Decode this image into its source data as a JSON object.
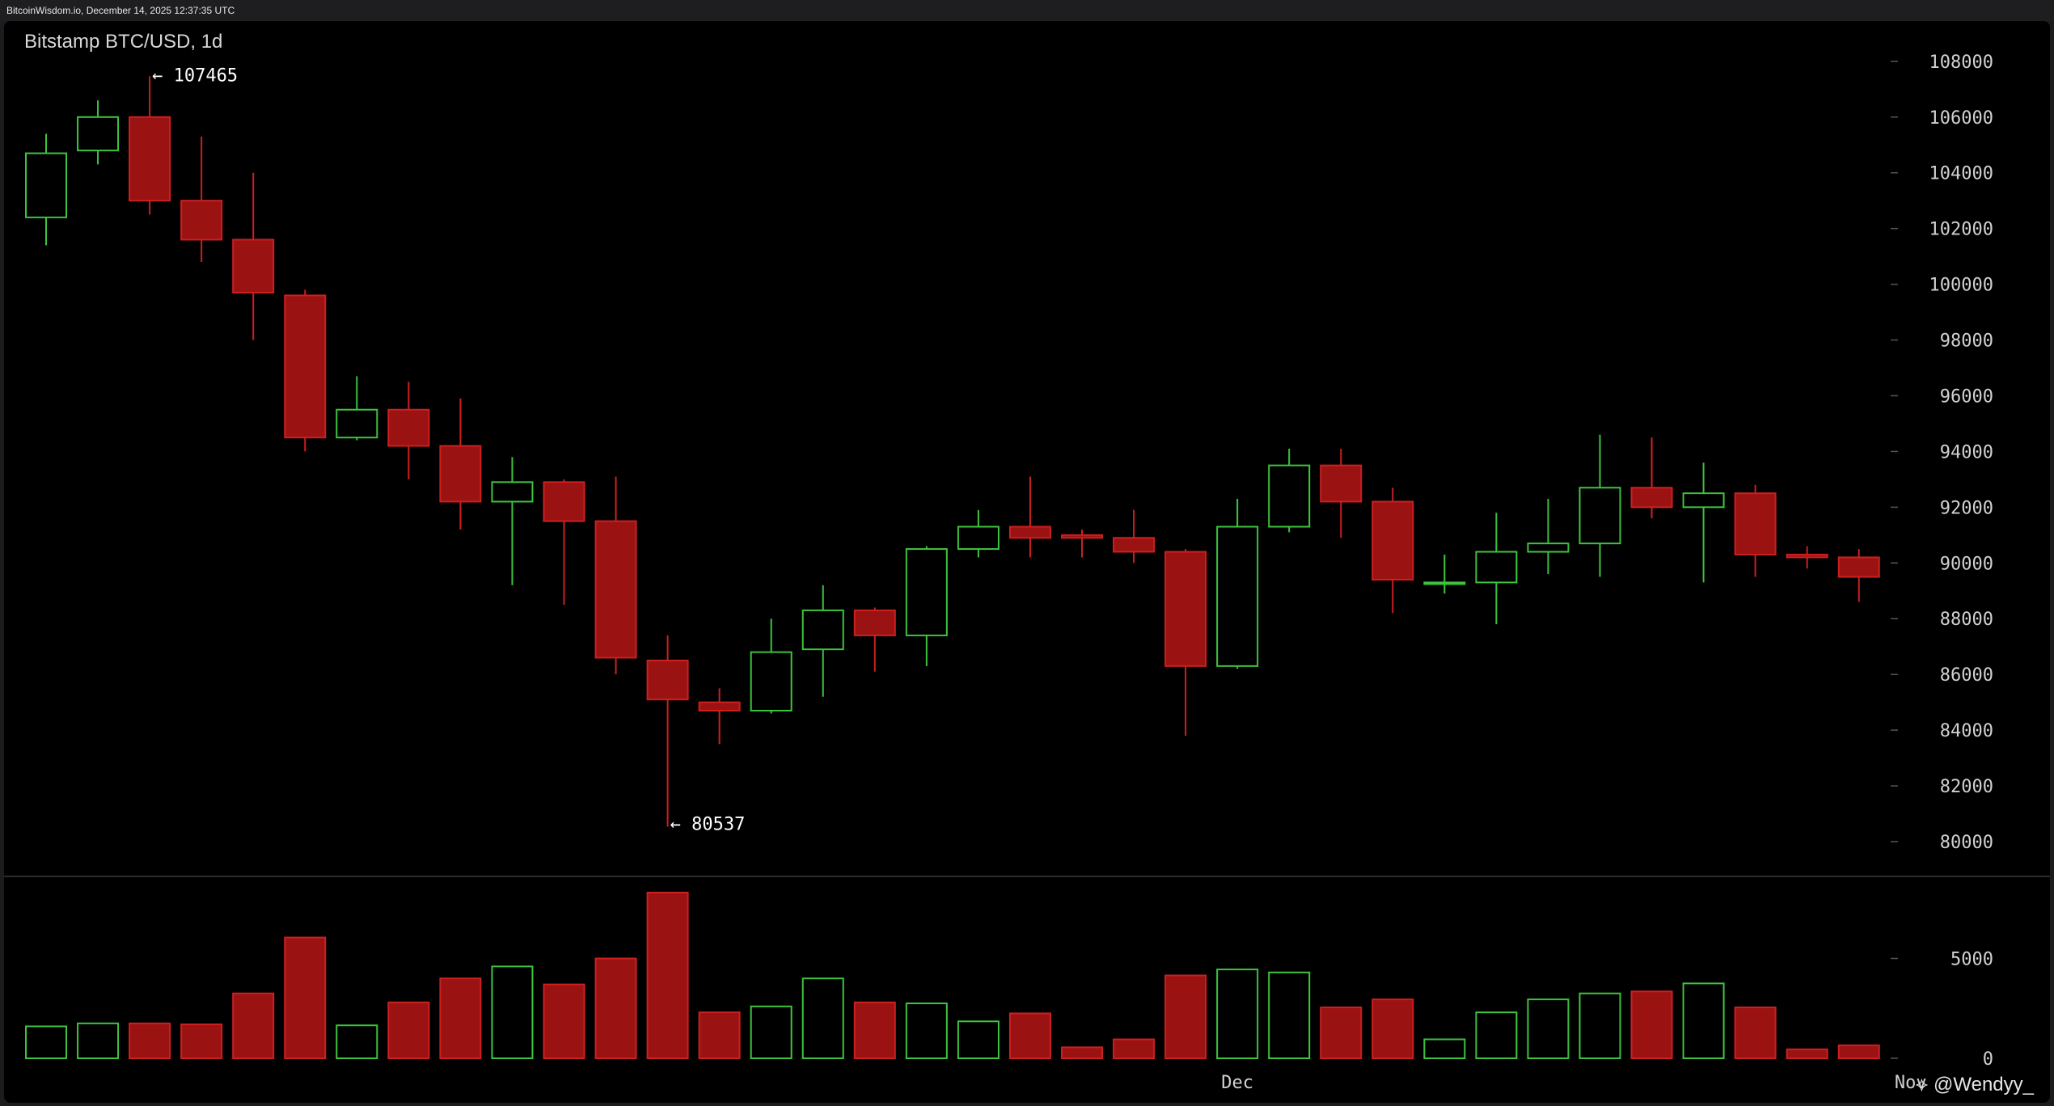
{
  "window": {
    "caption": "BitcoinWisdom.io, December 14, 2025 12:37:35 UTC"
  },
  "chart_title": "Bitstamp BTC/USD, 1d",
  "watermark": {
    "icon": "binance-diamond-icon",
    "text": "@Wendyy_"
  },
  "colors": {
    "up": "#3ec43e",
    "down": "#9b1212",
    "down_edge": "#cc2020",
    "background": "#000000",
    "grid_tick": "#555555"
  },
  "annotations": {
    "high_label": "← 107465",
    "low_label": "← 80537"
  },
  "chart_data": [
    {
      "type": "candlestick",
      "title": "Bitstamp BTC/USD, 1d",
      "y_ticks": [
        80000,
        82000,
        84000,
        86000,
        88000,
        90000,
        92000,
        94000,
        96000,
        98000,
        100000,
        102000,
        104000,
        106000,
        108000
      ],
      "ylim": [
        78000,
        109000
      ],
      "x_tick_labels": [
        "Dec",
        "Nov"
      ],
      "x_tick_at_index": [
        23,
        36
      ],
      "marked_high": 107465,
      "marked_low": 80537,
      "candles": [
        {
          "o": 102400,
          "h": 105400,
          "l": 101400,
          "c": 104700
        },
        {
          "o": 104800,
          "h": 106600,
          "l": 104300,
          "c": 106000
        },
        {
          "o": 106000,
          "h": 107465,
          "l": 102500,
          "c": 103000
        },
        {
          "o": 103000,
          "h": 105300,
          "l": 100800,
          "c": 101600
        },
        {
          "o": 101600,
          "h": 104000,
          "l": 98000,
          "c": 99700
        },
        {
          "o": 99600,
          "h": 99800,
          "l": 94000,
          "c": 94500
        },
        {
          "o": 94500,
          "h": 96700,
          "l": 94400,
          "c": 95500
        },
        {
          "o": 95500,
          "h": 96500,
          "l": 93000,
          "c": 94200
        },
        {
          "o": 94200,
          "h": 95900,
          "l": 91200,
          "c": 92200
        },
        {
          "o": 92200,
          "h": 93800,
          "l": 89200,
          "c": 92900
        },
        {
          "o": 92900,
          "h": 93000,
          "l": 88500,
          "c": 91500
        },
        {
          "o": 91500,
          "h": 93100,
          "l": 86000,
          "c": 86600
        },
        {
          "o": 86500,
          "h": 87400,
          "l": 80537,
          "c": 85100
        },
        {
          "o": 85000,
          "h": 85500,
          "l": 83500,
          "c": 84700
        },
        {
          "o": 84700,
          "h": 88000,
          "l": 84600,
          "c": 86800
        },
        {
          "o": 86900,
          "h": 89200,
          "l": 85200,
          "c": 88300
        },
        {
          "o": 88300,
          "h": 88400,
          "l": 86100,
          "c": 87400
        },
        {
          "o": 87400,
          "h": 90600,
          "l": 86300,
          "c": 90500
        },
        {
          "o": 90500,
          "h": 91900,
          "l": 90200,
          "c": 91300
        },
        {
          "o": 91300,
          "h": 93100,
          "l": 90200,
          "c": 90900
        },
        {
          "o": 91000,
          "h": 91200,
          "l": 90200,
          "c": 90900
        },
        {
          "o": 90900,
          "h": 91900,
          "l": 90000,
          "c": 90400
        },
        {
          "o": 90400,
          "h": 90500,
          "l": 83800,
          "c": 86300
        },
        {
          "o": 86300,
          "h": 92300,
          "l": 86200,
          "c": 91300
        },
        {
          "o": 91300,
          "h": 94100,
          "l": 91100,
          "c": 93500
        },
        {
          "o": 93500,
          "h": 94100,
          "l": 90900,
          "c": 92200
        },
        {
          "o": 92200,
          "h": 92700,
          "l": 88200,
          "c": 89400
        },
        {
          "o": 89300,
          "h": 90300,
          "l": 88900,
          "c": 89300
        },
        {
          "o": 89300,
          "h": 91800,
          "l": 87800,
          "c": 90400
        },
        {
          "o": 90400,
          "h": 92300,
          "l": 89600,
          "c": 90700
        },
        {
          "o": 90700,
          "h": 94600,
          "l": 89500,
          "c": 92700
        },
        {
          "o": 92700,
          "h": 94500,
          "l": 91600,
          "c": 92000
        },
        {
          "o": 92000,
          "h": 93600,
          "l": 89300,
          "c": 92500
        },
        {
          "o": 92500,
          "h": 92800,
          "l": 89500,
          "c": 90300
        },
        {
          "o": 90300,
          "h": 90600,
          "l": 89800,
          "c": 90200
        },
        {
          "o": 90200,
          "h": 90500,
          "l": 88600,
          "c": 89500
        }
      ]
    },
    {
      "type": "bar",
      "title": "Volume",
      "y_ticks": [
        0,
        5000
      ],
      "ylim": [
        0,
        8600
      ],
      "values": [
        1600,
        1750,
        1750,
        1700,
        3250,
        6050,
        1650,
        2800,
        4000,
        4600,
        3700,
        5000,
        8300,
        2300,
        2600,
        4000,
        2800,
        2750,
        1850,
        2250,
        550,
        950,
        4150,
        4450,
        4300,
        2550,
        2950,
        950,
        2300,
        2950,
        3250,
        3350,
        3750,
        2550,
        450,
        650
      ]
    }
  ]
}
